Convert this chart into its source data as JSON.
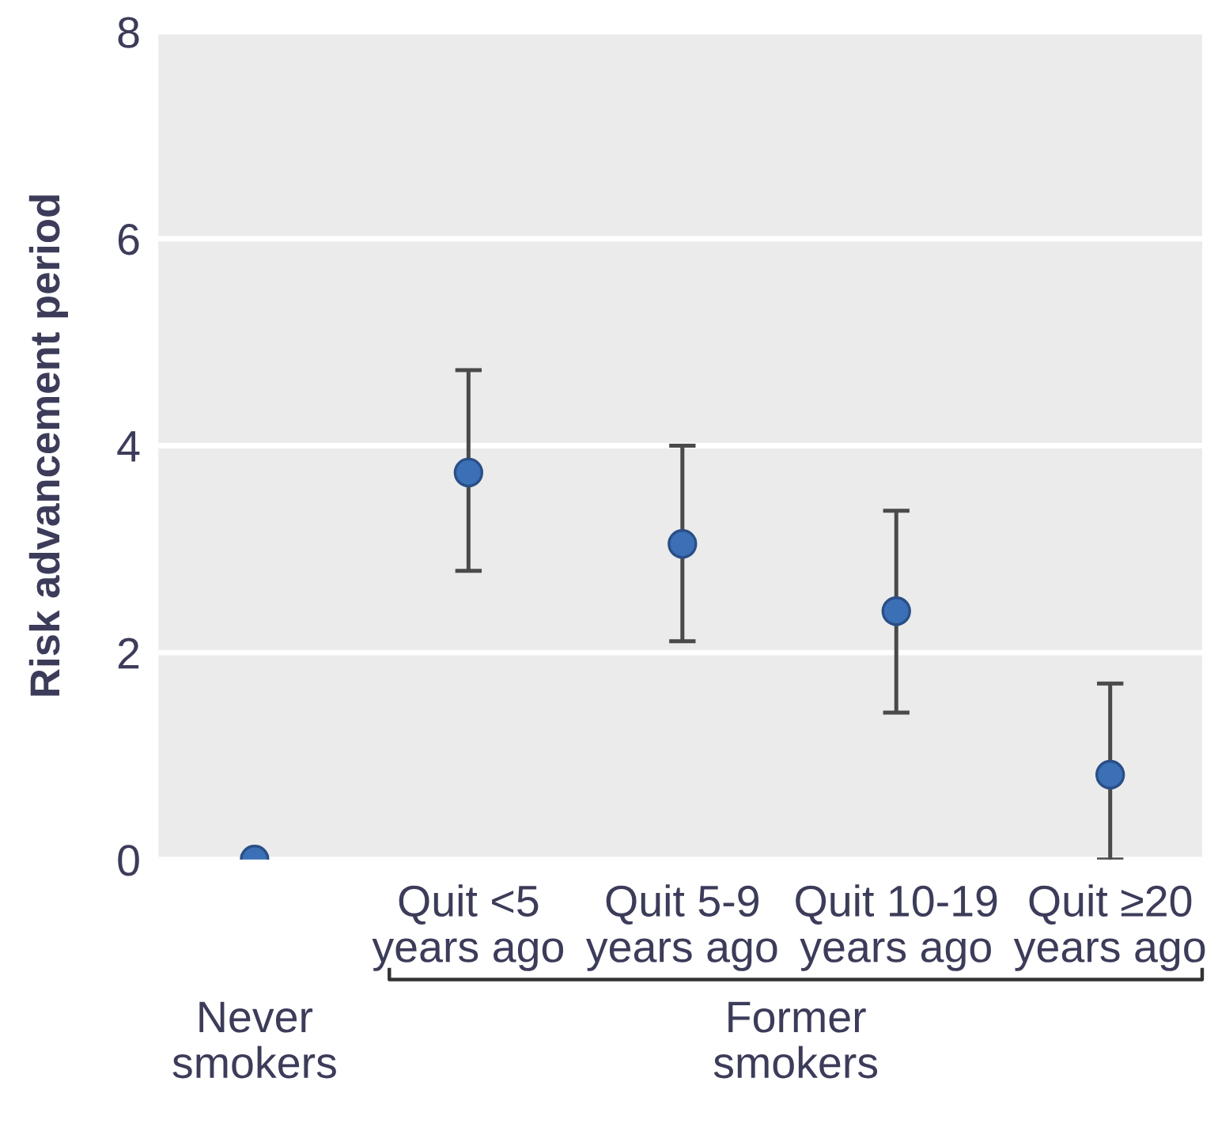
{
  "chart_data": {
    "type": "scatter",
    "ylabel": "Risk advancement period",
    "categories": [
      null,
      "Quit <5\nyears ago",
      "Quit 5-9\nyears ago",
      "Quit 10-19\nyears ago",
      "Quit ≥20\nyears ago"
    ],
    "series": [
      {
        "color": "#3b6fb6",
        "values": [
          0,
          3.74,
          3.05,
          2.4,
          0.82
        ],
        "errors": [
          null,
          [
            2.79,
            4.73
          ],
          [
            2.11,
            4.0
          ],
          [
            1.42,
            3.37
          ],
          [
            0,
            1.7
          ]
        ]
      }
    ],
    "ylim": [
      0,
      8
    ],
    "yticks": [
      0,
      2,
      4,
      6,
      8
    ],
    "grid": "y",
    "marker": "circle",
    "legend": false,
    "annotations": [
      "Never\nsmokers",
      "Former\nsmokers"
    ]
  }
}
